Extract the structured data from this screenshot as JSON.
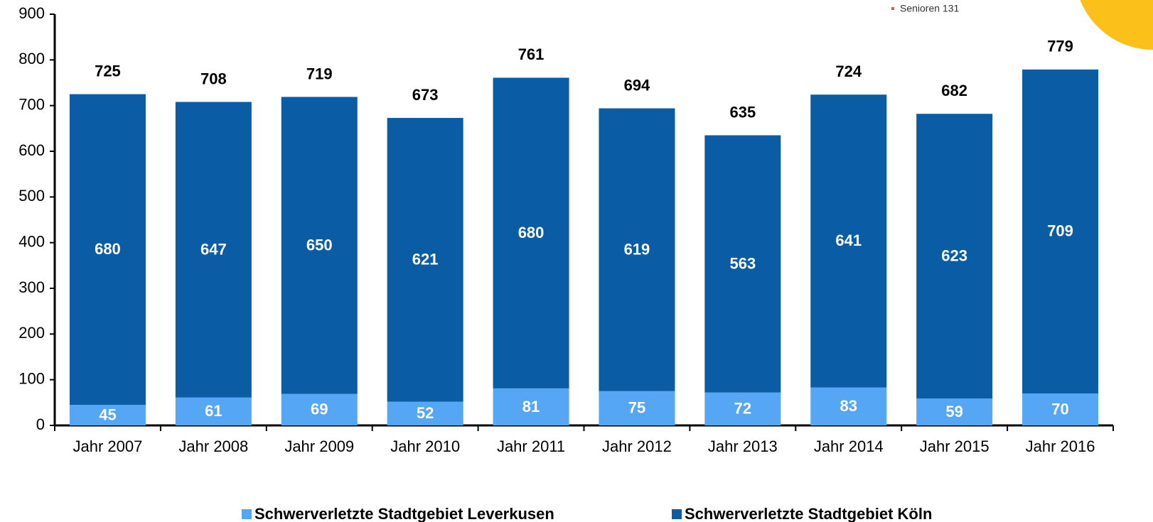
{
  "chart_data": {
    "type": "stacked-bar",
    "categories": [
      "Jahr 2007",
      "Jahr 2008",
      "Jahr 2009",
      "Jahr 2010",
      "Jahr 2011",
      "Jahr 2012",
      "Jahr 2013",
      "Jahr 2014",
      "Jahr 2015",
      "Jahr 2016"
    ],
    "series": [
      {
        "name": "Schwerverletzte Stadtgebiet Leverkusen",
        "color": "#55a6f5",
        "values": [
          45,
          61,
          69,
          52,
          81,
          75,
          72,
          83,
          59,
          70
        ]
      },
      {
        "name": "Schwerverletzte Stadtgebiet Köln",
        "color": "#0a5ca4",
        "values": [
          680,
          647,
          650,
          621,
          680,
          619,
          563,
          641,
          623,
          709
        ]
      }
    ],
    "totals": [
      725,
      708,
      719,
      673,
      761,
      694,
      635,
      724,
      682,
      779
    ],
    "ylim": [
      0,
      900
    ],
    "yticks": [
      0,
      100,
      200,
      300,
      400,
      500,
      600,
      700,
      800,
      900
    ],
    "annotation": "Senioren 131"
  }
}
